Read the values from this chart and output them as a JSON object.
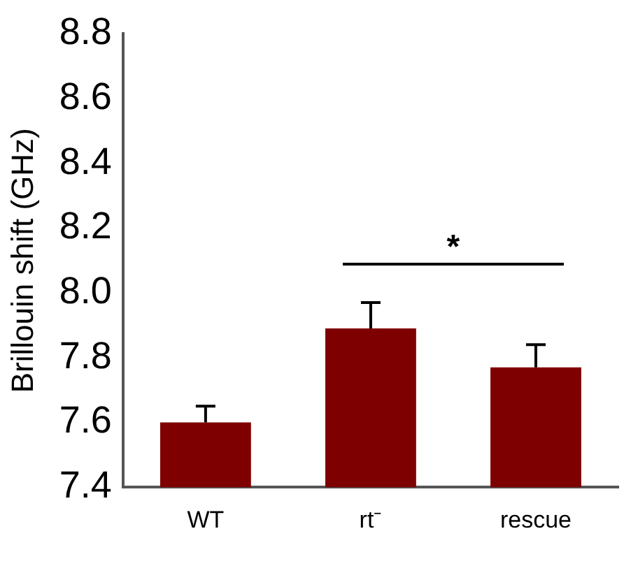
{
  "chart_data": {
    "type": "bar",
    "ylabel": "Brillouin shift (GHz)",
    "categories": [
      "WT",
      "rt⁻",
      "rescue"
    ],
    "values": [
      7.6,
      7.89,
      7.77
    ],
    "errors": [
      0.05,
      0.08,
      0.07
    ],
    "color": "#7f0000",
    "ylim": [
      7.4,
      8.8
    ],
    "yticks": [
      7.4,
      7.6,
      7.8,
      {
        "value": 8,
        "label": "8.0"
      },
      8.2,
      8.4,
      8.6,
      8.8
    ],
    "grid": false,
    "legend": false,
    "annotations": [
      "*"
    ]
  }
}
